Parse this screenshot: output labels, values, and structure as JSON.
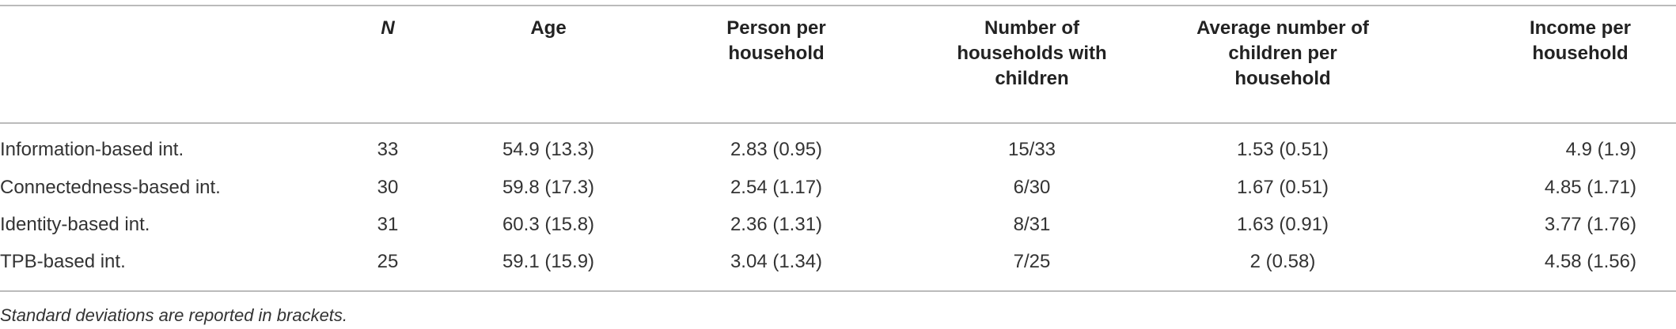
{
  "table": {
    "header": [
      "N",
      "Age",
      "Person per household",
      "Number of households with children",
      "Average number of children per household",
      "Income per household"
    ],
    "rows": [
      [
        "Information-based int.",
        33,
        "54.9 (13.3)",
        "2.83 (0.95)",
        "15/33",
        "1.53 (0.51)",
        "4.9 (1.9)"
      ],
      [
        "Connectedness-based int.",
        30,
        "59.8 (17.3)",
        "2.54 (1.17)",
        "6/30",
        "1.67 (0.51)",
        "4.85 (1.71)"
      ],
      [
        "Identity-based int.",
        31,
        "60.3 (15.8)",
        "2.36 (1.31)",
        "8/31",
        "1.63 (0.91)",
        "3.77 (1.76)"
      ],
      [
        "TPB-based int.",
        25,
        "59.1 (15.9)",
        "3.04 (1.34)",
        "7/25",
        "2 (0.58)",
        "4.58 (1.56)"
      ]
    ],
    "footnote": "Standard deviations are reported in brackets."
  }
}
